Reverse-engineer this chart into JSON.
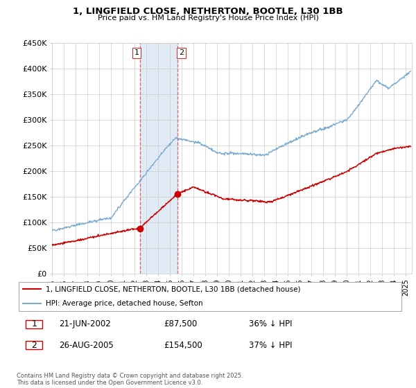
{
  "title": "1, LINGFIELD CLOSE, NETHERTON, BOOTLE, L30 1BB",
  "subtitle": "Price paid vs. HM Land Registry's House Price Index (HPI)",
  "ylabel_ticks": [
    "£0",
    "£50K",
    "£100K",
    "£150K",
    "£200K",
    "£250K",
    "£300K",
    "£350K",
    "£400K",
    "£450K"
  ],
  "ylim": [
    0,
    450000
  ],
  "xlim_start": 1995.0,
  "xlim_end": 2025.5,
  "legend_line1": "1, LINGFIELD CLOSE, NETHERTON, BOOTLE, L30 1BB (detached house)",
  "legend_line2": "HPI: Average price, detached house, Sefton",
  "line_color_red": "#cc0000",
  "line_color_blue": "#7aaad0",
  "purchase1_date": "21-JUN-2002",
  "purchase1_price": "£87,500",
  "purchase1_hpi": "36% ↓ HPI",
  "purchase2_date": "26-AUG-2005",
  "purchase2_price": "£154,500",
  "purchase2_hpi": "37% ↓ HPI",
  "footnote": "Contains HM Land Registry data © Crown copyright and database right 2025.\nThis data is licensed under the Open Government Licence v3.0.",
  "shaded_x1_start": 2002.47,
  "shaded_x1_end": 2005.65,
  "marker1_x": 2002.47,
  "marker1_y": 87500,
  "marker2_x": 2005.65,
  "marker2_y": 154500,
  "bg_color": "#f0f4f8"
}
